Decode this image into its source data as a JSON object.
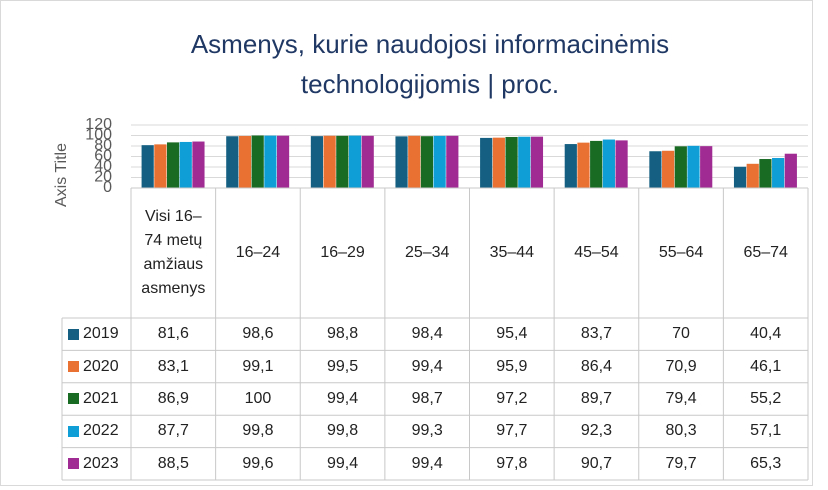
{
  "chart_data": {
    "type": "bar",
    "title": "Asmenys, kurie naudojosi informacinėmis technologijomis | proc.",
    "y_axis_label": "Axis Title",
    "categories": [
      "Visi 16–74 metų amžiaus asmenys",
      "16–24",
      "16–29",
      "25–34",
      "35–44",
      "45–54",
      "55–64",
      "65–74"
    ],
    "ylim": [
      0,
      120
    ],
    "yticks": [
      0,
      20,
      40,
      60,
      80,
      100,
      120
    ],
    "grid": true,
    "series": [
      {
        "name": "2019",
        "color": "#156082",
        "values": [
          81.6,
          98.6,
          98.8,
          98.4,
          95.4,
          83.7,
          70,
          40.4
        ],
        "value_labels": [
          "81,6",
          "98,6",
          "98,8",
          "98,4",
          "95,4",
          "83,7",
          "70",
          "40,4"
        ]
      },
      {
        "name": "2020",
        "color": "#E97132",
        "values": [
          83.1,
          99.1,
          99.5,
          99.4,
          95.9,
          86.4,
          70.9,
          46.1
        ],
        "value_labels": [
          "83,1",
          "99,1",
          "99,5",
          "99,4",
          "95,9",
          "86,4",
          "70,9",
          "46,1"
        ]
      },
      {
        "name": "2021",
        "color": "#196B24",
        "values": [
          86.9,
          100,
          99.4,
          98.7,
          97.2,
          89.7,
          79.4,
          55.2
        ],
        "value_labels": [
          "86,9",
          "100",
          "99,4",
          "98,7",
          "97,2",
          "89,7",
          "79,4",
          "55,2"
        ]
      },
      {
        "name": "2022",
        "color": "#0F9ED5",
        "values": [
          87.7,
          99.8,
          99.8,
          99.3,
          97.7,
          92.3,
          80.3,
          57.1
        ],
        "value_labels": [
          "87,7",
          "99,8",
          "99,8",
          "99,3",
          "97,7",
          "92,3",
          "80,3",
          "57,1"
        ]
      },
      {
        "name": "2023",
        "color": "#A02B93",
        "values": [
          88.5,
          99.6,
          99.4,
          99.4,
          97.8,
          90.7,
          79.7,
          65.3
        ],
        "value_labels": [
          "88,5",
          "99,6",
          "99,4",
          "99,4",
          "97,8",
          "90,7",
          "79,7",
          "65,3"
        ]
      }
    ]
  }
}
